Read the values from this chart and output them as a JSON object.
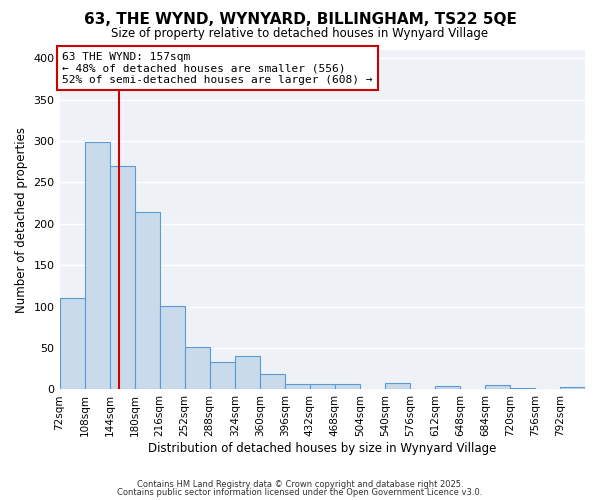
{
  "title": "63, THE WYND, WYNYARD, BILLINGHAM, TS22 5QE",
  "subtitle": "Size of property relative to detached houses in Wynyard Village",
  "xlabel": "Distribution of detached houses by size in Wynyard Village",
  "ylabel": "Number of detached properties",
  "bin_labels": [
    "72sqm",
    "108sqm",
    "144sqm",
    "180sqm",
    "216sqm",
    "252sqm",
    "288sqm",
    "324sqm",
    "360sqm",
    "396sqm",
    "432sqm",
    "468sqm",
    "504sqm",
    "540sqm",
    "576sqm",
    "612sqm",
    "648sqm",
    "684sqm",
    "720sqm",
    "756sqm",
    "792sqm"
  ],
  "bin_values": [
    110,
    299,
    270,
    214,
    101,
    51,
    33,
    40,
    19,
    7,
    7,
    6,
    0,
    8,
    0,
    4,
    0,
    5,
    2,
    0,
    3
  ],
  "bar_color": "#c9daea",
  "bar_edge_color": "#5b9bd5",
  "ylim": [
    0,
    410
  ],
  "yticks": [
    0,
    50,
    100,
    150,
    200,
    250,
    300,
    350,
    400
  ],
  "vline_x": 157,
  "vline_color": "#cc0000",
  "annotation_title": "63 THE WYND: 157sqm",
  "annotation_line1": "← 48% of detached houses are smaller (556)",
  "annotation_line2": "52% of semi-detached houses are larger (608) →",
  "annotation_box_edge_color": "#cc0000",
  "bg_color": "#ffffff",
  "plot_bg_color": "#eef2f7",
  "grid_color": "#ffffff",
  "grid_linewidth": 1.0,
  "footer1": "Contains HM Land Registry data © Crown copyright and database right 2025.",
  "footer2": "Contains public sector information licensed under the Open Government Licence v3.0."
}
